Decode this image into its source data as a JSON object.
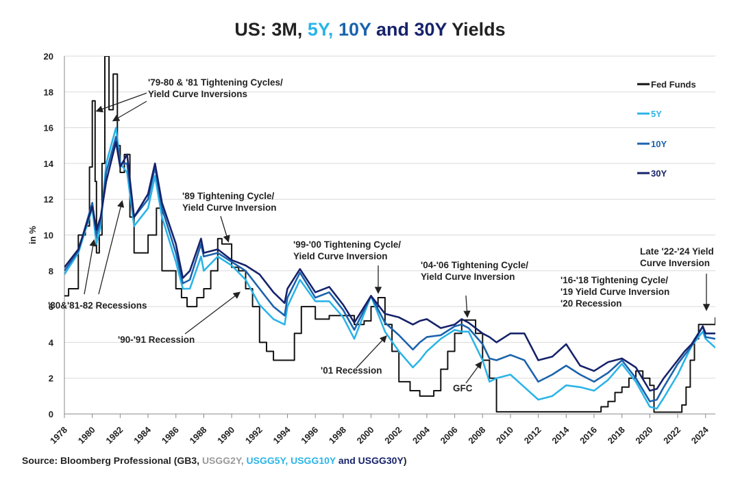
{
  "title": {
    "prefix": "US: 3M, ",
    "s5": "5Y,",
    "s10": "10Y",
    "and": " and ",
    "s30": "30Y",
    "suffix": " Yields"
  },
  "source": {
    "prefix": "Source: Bloomberg Professional (GB3, ",
    "g2": "USGG2Y,",
    "g5": "USGG5Y, USGG10Y",
    "and": " and ",
    "g30": "USGG30Y",
    "suffix": ")"
  },
  "chart_data": {
    "type": "line",
    "title": "US: 3M, 5Y, 10Y and 30Y Yields",
    "ylabel": "in %",
    "xlabel": "",
    "xlim": [
      1978,
      2024.7
    ],
    "ylim": [
      0,
      20
    ],
    "yticks": [
      0,
      2,
      4,
      6,
      8,
      10,
      12,
      14,
      16,
      18,
      20
    ],
    "xticks": [
      "1978",
      "1980",
      "1982",
      "1984",
      "1986",
      "1988",
      "1990",
      "1992",
      "1994",
      "1996",
      "1998",
      "2000",
      "2002",
      "2004",
      "2006",
      "2008",
      "2010",
      "2012",
      "2014",
      "2016",
      "2018",
      "2020",
      "2022",
      "2024"
    ],
    "grid": "horizontal",
    "legend_position": "right",
    "series": [
      {
        "name": "Fed Funds",
        "color": "#111111",
        "step": true,
        "x": [
          1978,
          1978.3,
          1979,
          1979.5,
          1979.8,
          1980,
          1980.2,
          1980.3,
          1980.5,
          1980.7,
          1980.9,
          1981.2,
          1981.5,
          1981.8,
          1982,
          1982.3,
          1982.7,
          1983,
          1984,
          1984.6,
          1985,
          1986,
          1986.4,
          1986.8,
          1987.5,
          1988,
          1988.5,
          1989,
          1989.3,
          1990,
          1990.5,
          1991,
          1991.5,
          1992,
          1992.5,
          1993,
          1994,
          1994.5,
          1995,
          1996,
          1997,
          1998,
          1998.8,
          1999.5,
          2000,
          2000.5,
          2001,
          2001.5,
          2002,
          2002.8,
          2003.5,
          2004,
          2004.5,
          2005,
          2005.5,
          2006,
          2006.5,
          2007,
          2007.5,
          2008,
          2008.5,
          2009,
          2015.9,
          2016.5,
          2017,
          2017.5,
          2018,
          2018.5,
          2019,
          2019.5,
          2020,
          2020.3,
          2022,
          2022.3,
          2022.6,
          2022.9,
          2023.2,
          2023.5,
          2024.7
        ],
        "values": [
          6.6,
          7,
          10,
          10.5,
          13.8,
          17.5,
          13,
          9,
          10,
          14,
          20,
          17,
          19,
          15,
          13.5,
          14.5,
          11,
          9,
          10,
          11.5,
          8,
          7,
          6.5,
          6,
          6.5,
          7,
          8,
          9.8,
          9.5,
          8.2,
          8,
          7,
          6,
          4,
          3.5,
          3,
          3,
          4.5,
          6,
          5.3,
          5.5,
          5.5,
          5,
          5.2,
          6,
          6.5,
          5,
          3.5,
          1.8,
          1.3,
          1,
          1,
          1.3,
          2.5,
          3.5,
          4.5,
          5.25,
          5.25,
          4.5,
          3,
          2,
          0.12,
          0.12,
          0.4,
          0.7,
          1.2,
          1.5,
          2,
          2.4,
          2,
          1.6,
          0.1,
          0.1,
          0.5,
          1.5,
          3,
          4.2,
          5,
          5.4
        ]
      },
      {
        "name": "5Y",
        "color": "#2bb4e8",
        "x": [
          1978,
          1979,
          1980,
          1980.3,
          1980.6,
          1981,
          1981.7,
          1982,
          1982.5,
          1983,
          1984,
          1984.5,
          1985,
          1986,
          1986.5,
          1987,
          1987.8,
          1988,
          1989,
          1990,
          1991,
          1992,
          1993,
          1993.8,
          1994,
          1994.9,
          1996,
          1997,
          1998,
          1998.8,
          2000,
          2001,
          2002,
          2003,
          2003.5,
          2004,
          2005,
          2006,
          2006.5,
          2007,
          2008,
          2008.5,
          2009,
          2010,
          2011,
          2012,
          2013,
          2014,
          2015,
          2016,
          2017,
          2018,
          2019,
          2020,
          2020.5,
          2021,
          2022,
          2022.5,
          2023,
          2023.8,
          2024,
          2024.7
        ],
        "values": [
          7.8,
          9,
          11.5,
          9.5,
          10.5,
          14,
          16,
          14,
          13.5,
          10.5,
          11.5,
          13.3,
          11,
          8.5,
          7,
          7,
          8.8,
          8,
          8.8,
          8.3,
          7.5,
          6.1,
          5.3,
          5,
          6,
          7.5,
          6.3,
          6.3,
          5.4,
          4.2,
          6.6,
          4.6,
          3.5,
          2.6,
          3,
          3.5,
          4.2,
          4.7,
          4.6,
          4.6,
          3,
          1.8,
          2,
          2.2,
          1.5,
          0.8,
          1,
          1.6,
          1.5,
          1.3,
          1.9,
          2.8,
          1.8,
          0.4,
          0.3,
          0.9,
          2.2,
          3,
          3.8,
          4.6,
          4.2,
          3.7
        ]
      },
      {
        "name": "10Y",
        "color": "#1b63ad",
        "x": [
          1978,
          1979,
          1980,
          1980.3,
          1980.6,
          1981,
          1981.7,
          1982,
          1982.5,
          1983,
          1984,
          1984.5,
          1985,
          1986,
          1986.5,
          1987,
          1987.8,
          1988,
          1989,
          1990,
          1991,
          1992,
          1993,
          1993.8,
          1994,
          1994.9,
          1996,
          1997,
          1998,
          1998.8,
          2000,
          2001,
          2002,
          2003,
          2003.5,
          2004,
          2005,
          2006,
          2006.5,
          2007,
          2008,
          2008.5,
          2009,
          2010,
          2011,
          2012,
          2013,
          2014,
          2015,
          2016,
          2017,
          2018,
          2019,
          2020,
          2020.5,
          2021,
          2022,
          2022.5,
          2023,
          2023.8,
          2024,
          2024.7
        ],
        "values": [
          8,
          9.1,
          11.8,
          10,
          10.8,
          13.5,
          15.5,
          14,
          14,
          11,
          12,
          13.8,
          11.5,
          9,
          7.3,
          7.5,
          9.5,
          8.8,
          9,
          8.5,
          8,
          7,
          6,
          5.5,
          6.5,
          7.9,
          6.5,
          6.8,
          5.8,
          4.7,
          6.6,
          5.1,
          4.4,
          3.6,
          4,
          4.3,
          4.4,
          4.9,
          5,
          4.8,
          3.9,
          3.1,
          3,
          3.3,
          3,
          1.8,
          2.2,
          2.7,
          2.2,
          1.8,
          2.3,
          3,
          2,
          0.7,
          0.8,
          1.5,
          2.8,
          3.3,
          3.8,
          4.9,
          4.3,
          4.2
        ]
      },
      {
        "name": "30Y",
        "color": "#16226a",
        "x": [
          1978,
          1979,
          1980,
          1980.3,
          1980.6,
          1981,
          1981.7,
          1982,
          1982.5,
          1983,
          1984,
          1984.5,
          1985,
          1986,
          1986.5,
          1987,
          1987.8,
          1988,
          1989,
          1990,
          1991,
          1992,
          1993,
          1993.8,
          1994,
          1994.9,
          1996,
          1997,
          1998,
          1998.8,
          2000,
          2001,
          2002,
          2003,
          2003.5,
          2004,
          2005,
          2006,
          2006.5,
          2007,
          2008,
          2008.5,
          2009,
          2010,
          2011,
          2012,
          2013,
          2014,
          2015,
          2016,
          2017,
          2018,
          2019,
          2020,
          2020.5,
          2021,
          2022,
          2022.5,
          2023,
          2023.8,
          2024,
          2024.7
        ],
        "values": [
          8.2,
          9.2,
          11.6,
          10.3,
          11,
          13,
          15.2,
          13.8,
          14.5,
          11,
          12.3,
          14,
          11.8,
          9.5,
          7.6,
          8,
          9.8,
          9,
          9.2,
          8.6,
          8.3,
          7.8,
          6.8,
          6.2,
          7,
          8.1,
          6.8,
          7.1,
          6.1,
          5.1,
          6.6,
          5.6,
          5.4,
          5,
          5.2,
          5.3,
          4.8,
          5,
          5.3,
          5.1,
          4.5,
          4.3,
          4,
          4.5,
          4.5,
          3,
          3.2,
          3.9,
          2.7,
          2.4,
          2.9,
          3.1,
          2.6,
          1.3,
          1.4,
          2,
          3,
          3.5,
          3.9,
          4.9,
          4.5,
          4.5
        ]
      }
    ],
    "annotations": [
      {
        "id": "t7980",
        "lines": [
          "'79-80 & '81 Tightening Cycles/",
          "Yield Curve Inversions"
        ]
      },
      {
        "id": "rec80",
        "lines": [
          "'80&'81-82 Recessions"
        ]
      },
      {
        "id": "t89",
        "lines": [
          "'89 Tightening Cycle/",
          "Yield Curve Inversion"
        ]
      },
      {
        "id": "rec9091",
        "lines": [
          "'90-'91 Recession"
        ]
      },
      {
        "id": "t9900",
        "lines": [
          "'99-'00 Tightening Cycle/",
          "Yield Curve Inversion"
        ]
      },
      {
        "id": "rec01",
        "lines": [
          "'01 Recession"
        ]
      },
      {
        "id": "t0406",
        "lines": [
          "'04-'06 Tightening Cycle/",
          "Yield Curve Inversion"
        ]
      },
      {
        "id": "gfc",
        "lines": [
          "GFC"
        ]
      },
      {
        "id": "t1618",
        "lines": [
          "'16-'18 Tightening Cycle/",
          "'19 Yield Curve Inversion",
          "'20 Recession"
        ]
      },
      {
        "id": "t2224",
        "lines": [
          "Late '22-'24 Yield",
          "Curve Inversion"
        ]
      }
    ]
  }
}
